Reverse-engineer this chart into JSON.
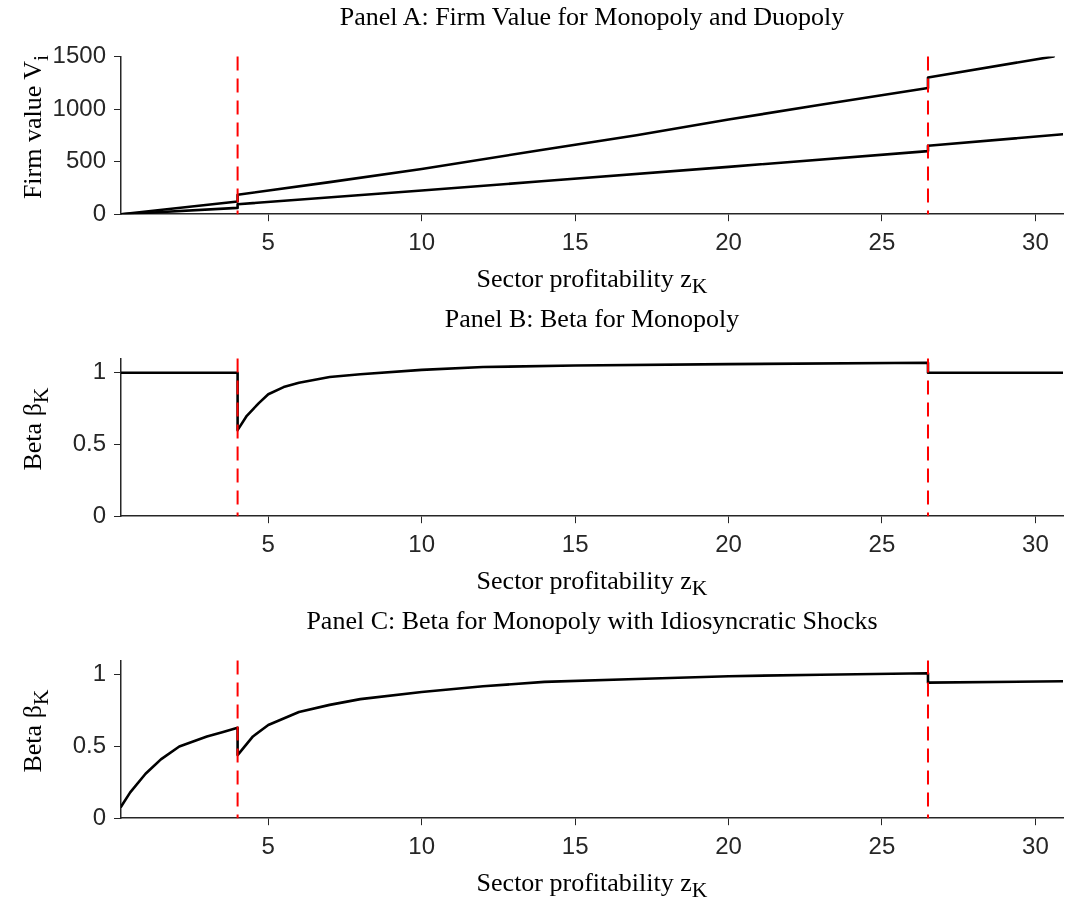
{
  "chart_data": [
    {
      "type": "line",
      "title": "Panel A: Firm Value for Monopoly and Duopoly",
      "xlabel": "Sector profitability z$_{K}$",
      "ylabel": "Firm value V$_{i}$",
      "xlim": [
        0.2,
        30.9
      ],
      "xticks": [
        5,
        10,
        15,
        20,
        25,
        30
      ],
      "ylim": [
        0,
        1500
      ],
      "yticks": [
        0,
        500,
        1000,
        1500
      ],
      "grid": false,
      "legend": false,
      "marker": "none",
      "line_style": "solid",
      "ref_lines": [
        {
          "axis": "x",
          "value": 4,
          "color": "#ff0000",
          "line_style": "dashed"
        },
        {
          "axis": "x",
          "value": 26.5,
          "color": "#ff0000",
          "line_style": "dashed"
        }
      ],
      "series": [
        {
          "color": "#000000",
          "x": [
            0.2,
            4,
            4,
            7,
            10,
            13.9,
            17,
            20,
            23,
            26.5,
            26.5,
            30.6
          ],
          "values": [
            0,
            120,
            185,
            305,
            430,
            610,
            750,
            900,
            1040,
            1200,
            1300,
            1500
          ]
        },
        {
          "color": "#000000",
          "x": [
            0.2,
            4,
            4,
            10,
            13.9,
            20,
            26.5,
            26.5,
            30.9
          ],
          "values": [
            0,
            60,
            95,
            225,
            313,
            450,
            600,
            650,
            760
          ]
        }
      ]
    },
    {
      "type": "line",
      "title": "Panel B: Beta for Monopoly",
      "xlabel": "Sector profitability z$_{K}$",
      "ylabel": "Beta β$_{K}$",
      "xlim": [
        0.2,
        30.9
      ],
      "xticks": [
        5,
        10,
        15,
        20,
        25,
        30
      ],
      "ylim": [
        0,
        1.1
      ],
      "yticks": [
        0,
        0.5,
        1
      ],
      "grid": false,
      "legend": false,
      "marker": "none",
      "line_style": "solid",
      "ref_lines": [
        {
          "axis": "x",
          "value": 4,
          "color": "#ff0000",
          "line_style": "dashed"
        },
        {
          "axis": "x",
          "value": 26.5,
          "color": "#ff0000",
          "line_style": "dashed"
        }
      ],
      "series": [
        {
          "color": "#000000",
          "x": [
            0.2,
            4,
            4,
            4.3,
            4.7,
            5,
            5.5,
            6,
            7,
            8,
            10,
            12,
            15,
            20,
            26.5,
            26.5,
            30.9
          ],
          "values": [
            1,
            1,
            0.6,
            0.7,
            0.79,
            0.85,
            0.9,
            0.93,
            0.97,
            0.99,
            1.02,
            1.04,
            1.05,
            1.06,
            1.07,
            1,
            1
          ]
        }
      ]
    },
    {
      "type": "line",
      "title": "Panel C: Beta for Monopoly with Idiosyncratic Shocks",
      "xlabel": "Sector profitability z$_{K}$",
      "ylabel": "Beta β$_{K}$",
      "xlim": [
        0.2,
        30.9
      ],
      "xticks": [
        5,
        10,
        15,
        20,
        25,
        30
      ],
      "ylim": [
        0,
        1.1
      ],
      "yticks": [
        0,
        0.5,
        1
      ],
      "grid": false,
      "legend": false,
      "marker": "none",
      "line_style": "solid",
      "ref_lines": [
        {
          "axis": "x",
          "value": 4,
          "color": "#ff0000",
          "line_style": "dashed"
        },
        {
          "axis": "x",
          "value": 26.5,
          "color": "#ff0000",
          "line_style": "dashed"
        }
      ],
      "series": [
        {
          "color": "#000000",
          "x": [
            0.2,
            0.5,
            1,
            1.5,
            2.1,
            3,
            3.5,
            4,
            4,
            4.5,
            5,
            6,
            7,
            8,
            10,
            12,
            14,
            17,
            20,
            23,
            26.5,
            26.5,
            30.9
          ],
          "values": [
            0.08,
            0.18,
            0.31,
            0.41,
            0.5,
            0.57,
            0.6,
            0.63,
            0.44,
            0.57,
            0.65,
            0.74,
            0.79,
            0.83,
            0.88,
            0.92,
            0.95,
            0.97,
            0.99,
            1,
            1.01,
            0.945,
            0.955
          ]
        }
      ]
    }
  ]
}
